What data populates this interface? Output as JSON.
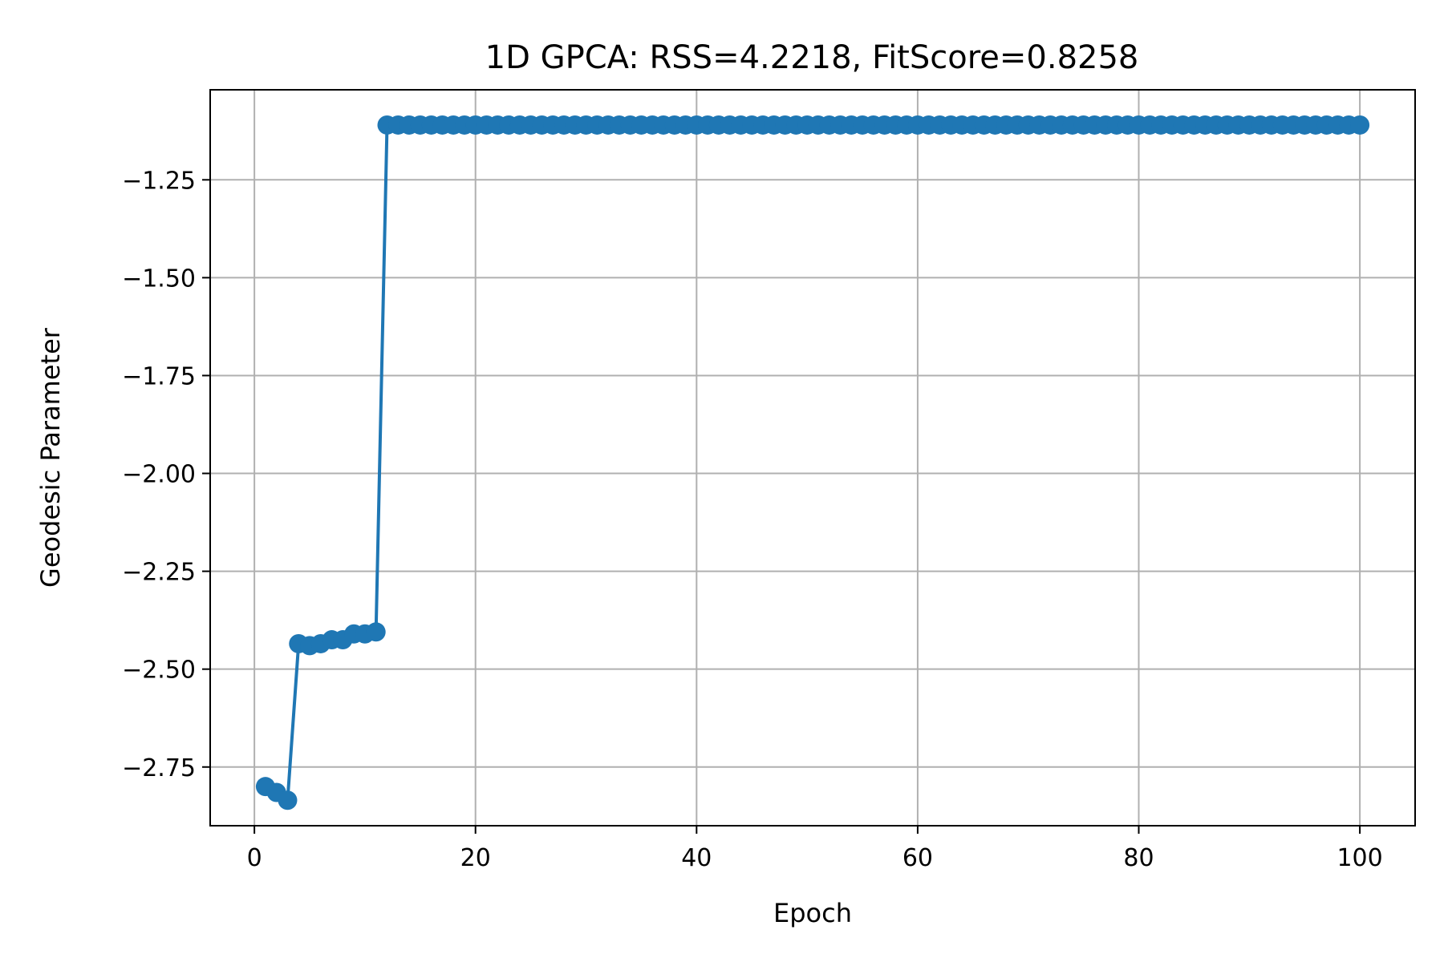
{
  "chart_data": {
    "type": "line",
    "title": "1D GPCA: RSS=4.2218, FitScore=0.8258",
    "xlabel": "Epoch",
    "ylabel": "Geodesic Parameter",
    "xlim": [
      -4,
      105
    ],
    "ylim": [
      -2.9,
      -1.02
    ],
    "grid": true,
    "legend": "none",
    "x_ticks": [
      0,
      20,
      40,
      60,
      80,
      100
    ],
    "x_tick_labels": [
      "0",
      "20",
      "40",
      "60",
      "80",
      "100"
    ],
    "y_ticks": [
      -1.25,
      -1.5,
      -1.75,
      -2.0,
      -2.25,
      -2.5,
      -2.75
    ],
    "y_tick_labels": [
      "−1.25",
      "−1.50",
      "−1.75",
      "−2.00",
      "−2.25",
      "−2.50",
      "−2.75"
    ],
    "colors": {
      "series": "#1f77b4",
      "grid": "#b0b0b0",
      "axes": "#000000"
    },
    "series": [
      {
        "marker": "circle",
        "x": [
          1,
          2,
          3,
          4,
          5,
          6,
          7,
          8,
          9,
          10,
          11,
          12,
          13,
          14,
          15,
          16,
          17,
          18,
          19,
          20,
          21,
          22,
          23,
          24,
          25,
          26,
          27,
          28,
          29,
          30,
          31,
          32,
          33,
          34,
          35,
          36,
          37,
          38,
          39,
          40,
          41,
          42,
          43,
          44,
          45,
          46,
          47,
          48,
          49,
          50,
          51,
          52,
          53,
          54,
          55,
          56,
          57,
          58,
          59,
          60,
          61,
          62,
          63,
          64,
          65,
          66,
          67,
          68,
          69,
          70,
          71,
          72,
          73,
          74,
          75,
          76,
          77,
          78,
          79,
          80,
          81,
          82,
          83,
          84,
          85,
          86,
          87,
          88,
          89,
          90,
          91,
          92,
          93,
          94,
          95,
          96,
          97,
          98,
          99,
          100
        ],
        "y": [
          -2.8,
          -2.815,
          -2.835,
          -2.435,
          -2.44,
          -2.435,
          -2.425,
          -2.425,
          -2.41,
          -2.41,
          -2.405,
          -1.11,
          -1.11,
          -1.11,
          -1.11,
          -1.11,
          -1.11,
          -1.11,
          -1.11,
          -1.11,
          -1.11,
          -1.11,
          -1.11,
          -1.11,
          -1.11,
          -1.11,
          -1.11,
          -1.11,
          -1.11,
          -1.11,
          -1.11,
          -1.11,
          -1.11,
          -1.11,
          -1.11,
          -1.11,
          -1.11,
          -1.11,
          -1.11,
          -1.11,
          -1.11,
          -1.11,
          -1.11,
          -1.11,
          -1.11,
          -1.11,
          -1.11,
          -1.11,
          -1.11,
          -1.11,
          -1.11,
          -1.11,
          -1.11,
          -1.11,
          -1.11,
          -1.11,
          -1.11,
          -1.11,
          -1.11,
          -1.11,
          -1.11,
          -1.11,
          -1.11,
          -1.11,
          -1.11,
          -1.11,
          -1.11,
          -1.11,
          -1.11,
          -1.11,
          -1.11,
          -1.11,
          -1.11,
          -1.11,
          -1.11,
          -1.11,
          -1.11,
          -1.11,
          -1.11,
          -1.11,
          -1.11,
          -1.11,
          -1.11,
          -1.11,
          -1.11,
          -1.11,
          -1.11,
          -1.11,
          -1.11,
          -1.11,
          -1.11,
          -1.11,
          -1.11,
          -1.11,
          -1.11,
          -1.11,
          -1.11,
          -1.11,
          -1.11,
          -1.11
        ]
      }
    ]
  }
}
